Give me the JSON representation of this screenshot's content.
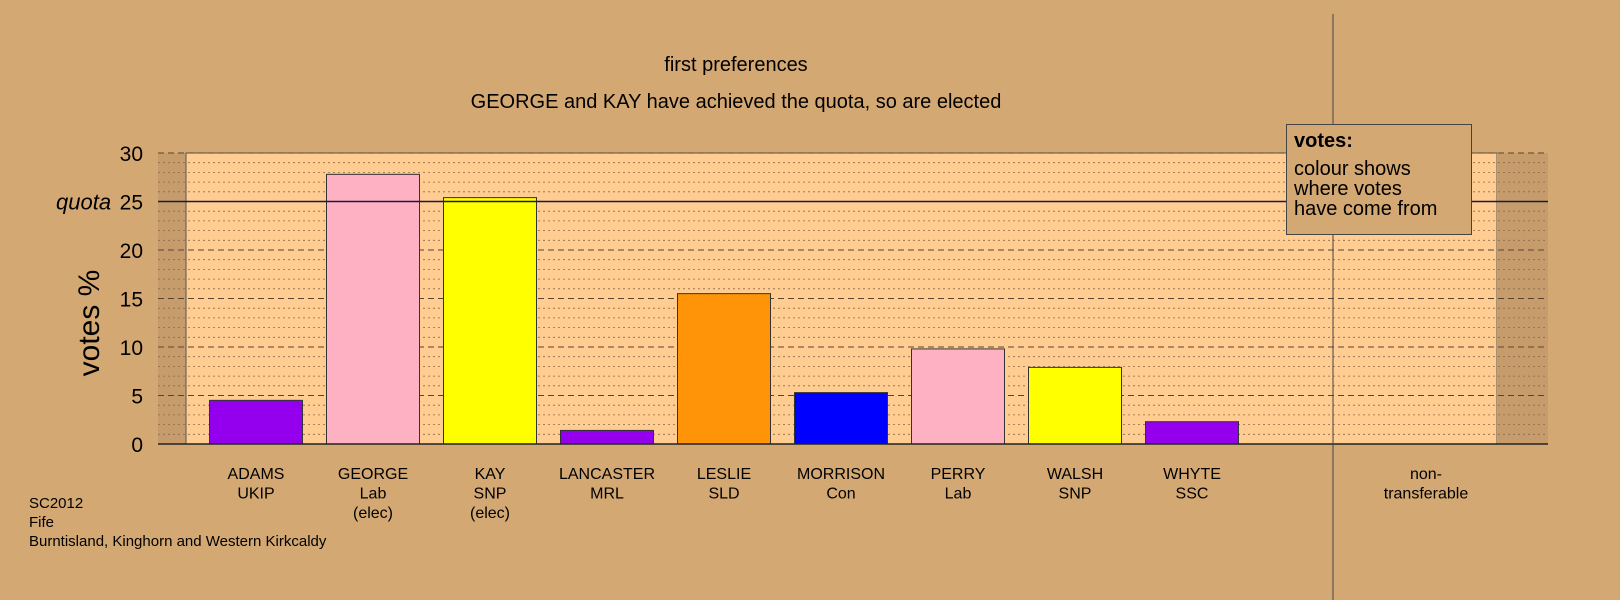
{
  "chart_data": {
    "type": "bar",
    "title": "first preferences",
    "subtitle": "GEORGE and KAY have achieved the quota, so are elected",
    "ylabel": "votes %",
    "ylim": [
      0,
      30
    ],
    "yticks": [
      0,
      5,
      10,
      15,
      20,
      25,
      30
    ],
    "quota": 25,
    "quota_label": "quota",
    "categories": [
      [
        "ADAMS",
        "UKIP"
      ],
      [
        "GEORGE",
        "Lab",
        "(elec)"
      ],
      [
        "KAY",
        "SNP",
        "(elec)"
      ],
      [
        "LANCASTER",
        "MRL"
      ],
      [
        "LESLIE",
        "SLD"
      ],
      [
        "MORRISON",
        "Con"
      ],
      [
        "PERRY",
        "Lab"
      ],
      [
        "WALSH",
        "SNP"
      ],
      [
        "WHYTE",
        "SSC"
      ]
    ],
    "values": [
      4.5,
      27.8,
      25.4,
      1.4,
      15.5,
      5.3,
      9.8,
      7.9,
      2.3
    ],
    "colors": [
      "#9400ee",
      "#ffb1c4",
      "#ffff00",
      "#9400ee",
      "#ff9408",
      "#0000ff",
      "#ffb1c4",
      "#ffff00",
      "#9400ee"
    ],
    "nontransferable_label": [
      "non-",
      "transferable"
    ],
    "nontransferable_value": 0,
    "grid": true,
    "legend_placement": "top-right"
  },
  "legend": {
    "title": "votes:",
    "lines": [
      "colour shows",
      "where votes",
      "have come from"
    ]
  },
  "footer": {
    "election": "SC2012",
    "council": "Fife",
    "ward": "Burntisland, Kinghorn and Western Kirkcaldy"
  },
  "colors": {
    "background": "#d4a873",
    "plot_area": "#ffcc91",
    "side_area": "#c69c6c"
  }
}
